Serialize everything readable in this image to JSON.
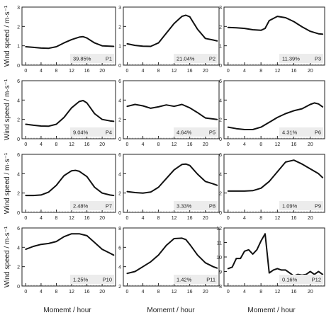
{
  "figure": {
    "ylabel": "Wind speed / m·s⁻¹",
    "xlabel": "Momemt / hour"
  },
  "chart_data": [
    {
      "type": "line",
      "panel": "P1",
      "share": "39.85%",
      "x": [
        0,
        2,
        4,
        6,
        8,
        10,
        12,
        14,
        15,
        16,
        18,
        20,
        22,
        23
      ],
      "y": [
        0.95,
        0.92,
        0.88,
        0.87,
        0.95,
        1.15,
        1.32,
        1.45,
        1.47,
        1.4,
        1.15,
        1.0,
        0.98,
        0.97
      ],
      "xlim": [
        -1,
        23.5
      ],
      "ylim": [
        0,
        3
      ],
      "yticks": [
        0,
        1,
        2,
        3
      ],
      "xticks": [
        0,
        4,
        8,
        12,
        16,
        20
      ]
    },
    {
      "type": "line",
      "panel": "P2",
      "share": "21.04%",
      "x": [
        0,
        2,
        4,
        6,
        8,
        10,
        12,
        14,
        15,
        16,
        18,
        20,
        22,
        23
      ],
      "y": [
        1.1,
        1.02,
        0.98,
        0.97,
        1.15,
        1.65,
        2.15,
        2.52,
        2.58,
        2.5,
        1.85,
        1.38,
        1.3,
        1.25
      ],
      "xlim": [
        -1,
        23.5
      ],
      "ylim": [
        0,
        3
      ],
      "yticks": [
        0,
        1,
        2,
        3
      ],
      "xticks": [
        0,
        4,
        8,
        12,
        16,
        20
      ]
    },
    {
      "type": "line",
      "panel": "P3",
      "share": "11.39%",
      "x": [
        0,
        2,
        4,
        6,
        8,
        9,
        10,
        12,
        14,
        16,
        18,
        20,
        22,
        23
      ],
      "y": [
        1.95,
        1.93,
        1.9,
        1.83,
        1.8,
        1.9,
        2.3,
        2.52,
        2.45,
        2.25,
        1.98,
        1.75,
        1.62,
        1.6
      ],
      "xlim": [
        -1,
        23.5
      ],
      "ylim": [
        0,
        3
      ],
      "yticks": [
        0,
        1,
        2,
        3
      ],
      "xticks": [
        0,
        4,
        8,
        12,
        16,
        20
      ]
    },
    {
      "type": "line",
      "panel": "P4",
      "share": "9.04%",
      "x": [
        0,
        2,
        4,
        6,
        8,
        10,
        12,
        14,
        15,
        16,
        18,
        20,
        22,
        23
      ],
      "y": [
        1.5,
        1.4,
        1.32,
        1.3,
        1.5,
        2.2,
        3.2,
        3.85,
        3.95,
        3.7,
        2.6,
        2.0,
        1.85,
        1.8
      ],
      "xlim": [
        -1,
        23.5
      ],
      "ylim": [
        0,
        6
      ],
      "yticks": [
        0,
        2,
        4,
        6
      ],
      "xticks": [
        0,
        4,
        8,
        12,
        16,
        20
      ]
    },
    {
      "type": "line",
      "panel": "P5",
      "share": "4.64%",
      "x": [
        0,
        2,
        4,
        6,
        8,
        10,
        12,
        14,
        16,
        18,
        20,
        22,
        23
      ],
      "y": [
        3.35,
        3.55,
        3.4,
        3.15,
        3.3,
        3.5,
        3.35,
        3.55,
        3.2,
        2.7,
        2.15,
        2.05,
        2.0
      ],
      "xlim": [
        -1,
        23.5
      ],
      "ylim": [
        0,
        6
      ],
      "yticks": [
        0,
        2,
        4,
        6
      ],
      "xticks": [
        0,
        4,
        8,
        12,
        16,
        20
      ]
    },
    {
      "type": "line",
      "panel": "P6",
      "share": "4.31%",
      "x": [
        0,
        2,
        4,
        6,
        8,
        10,
        12,
        14,
        16,
        18,
        20,
        21,
        22,
        23
      ],
      "y": [
        1.2,
        1.05,
        0.95,
        0.95,
        1.2,
        1.7,
        2.2,
        2.6,
        2.9,
        3.1,
        3.55,
        3.7,
        3.6,
        3.3
      ],
      "xlim": [
        -1,
        23.5
      ],
      "ylim": [
        0,
        6
      ],
      "yticks": [
        0,
        2,
        4,
        6
      ],
      "xticks": [
        0,
        4,
        8,
        12,
        16,
        20
      ]
    },
    {
      "type": "line",
      "panel": "P7",
      "share": "2.48%",
      "x": [
        0,
        2,
        4,
        6,
        8,
        10,
        12,
        13,
        14,
        16,
        18,
        20,
        22,
        23
      ],
      "y": [
        1.75,
        1.75,
        1.8,
        2.1,
        2.8,
        3.8,
        4.3,
        4.35,
        4.25,
        3.7,
        2.6,
        2.0,
        1.8,
        1.75
      ],
      "xlim": [
        -1,
        23.5
      ],
      "ylim": [
        0,
        6
      ],
      "yticks": [
        0,
        2,
        4,
        6
      ],
      "xticks": [
        0,
        4,
        8,
        12,
        16,
        20
      ]
    },
    {
      "type": "line",
      "panel": "P8",
      "share": "3.33%",
      "x": [
        0,
        2,
        4,
        6,
        8,
        10,
        12,
        14,
        15,
        16,
        18,
        20,
        22,
        23
      ],
      "y": [
        2.15,
        2.05,
        2.0,
        2.1,
        2.6,
        3.5,
        4.4,
        4.95,
        5.0,
        4.85,
        3.95,
        3.2,
        2.95,
        2.8
      ],
      "xlim": [
        -1,
        23.5
      ],
      "ylim": [
        0,
        6
      ],
      "yticks": [
        0,
        2,
        4,
        6
      ],
      "xticks": [
        0,
        4,
        8,
        12,
        16,
        20
      ]
    },
    {
      "type": "line",
      "panel": "P9",
      "share": "1.09%",
      "x": [
        0,
        2,
        4,
        6,
        8,
        10,
        12,
        14,
        16,
        18,
        20,
        22,
        23
      ],
      "y": [
        2.2,
        2.2,
        2.2,
        2.25,
        2.5,
        3.2,
        4.2,
        5.2,
        5.4,
        5.0,
        4.5,
        4.0,
        3.6
      ],
      "xlim": [
        -1,
        23.5
      ],
      "ylim": [
        0,
        6
      ],
      "yticks": [
        0,
        2,
        4,
        6
      ],
      "xticks": [
        0,
        4,
        8,
        12,
        16,
        20
      ]
    },
    {
      "type": "line",
      "panel": "P10",
      "share": "1.25%",
      "x": [
        0,
        2,
        4,
        6,
        8,
        10,
        12,
        14,
        16,
        18,
        20,
        22,
        23
      ],
      "y": [
        3.8,
        4.1,
        4.3,
        4.4,
        4.6,
        5.1,
        5.4,
        5.4,
        5.2,
        4.5,
        3.8,
        3.4,
        3.2
      ],
      "xlim": [
        -1,
        23.5
      ],
      "ylim": [
        0,
        6
      ],
      "yticks": [
        0,
        2,
        4,
        6
      ],
      "xticks": [
        0,
        4,
        8,
        12,
        16,
        20
      ]
    },
    {
      "type": "line",
      "panel": "P11",
      "share": "1.42%",
      "x": [
        0,
        2,
        4,
        6,
        8,
        10,
        12,
        14,
        15,
        16,
        18,
        20,
        22,
        23
      ],
      "y": [
        3.3,
        3.5,
        4.0,
        4.5,
        5.2,
        6.2,
        6.9,
        6.95,
        6.8,
        6.3,
        5.2,
        4.4,
        4.0,
        3.85
      ],
      "xlim": [
        -1,
        23.5
      ],
      "ylim": [
        2,
        8
      ],
      "yticks": [
        2,
        4,
        6,
        8
      ],
      "xticks": [
        0,
        4,
        8,
        12,
        16,
        20
      ]
    },
    {
      "type": "line",
      "panel": "P12",
      "share": "0.16%",
      "x": [
        0,
        1,
        2,
        3,
        4,
        5,
        6,
        7,
        8,
        9,
        10,
        11,
        12,
        13,
        14,
        15,
        16,
        17,
        18,
        19,
        20,
        21,
        22,
        23
      ],
      "y": [
        9.2,
        9.3,
        9.9,
        9.9,
        10.4,
        10.5,
        10.2,
        10.5,
        11.1,
        11.6,
        8.9,
        9.1,
        9.2,
        9.1,
        9.1,
        8.9,
        8.7,
        8.8,
        8.75,
        8.8,
        9.0,
        8.8,
        9.0,
        8.8
      ],
      "xlim": [
        -1,
        23.5
      ],
      "ylim": [
        8,
        12
      ],
      "yticks": [
        8,
        9,
        10,
        11,
        12
      ],
      "xticks": [
        0,
        4,
        8,
        12,
        16,
        20
      ]
    }
  ]
}
